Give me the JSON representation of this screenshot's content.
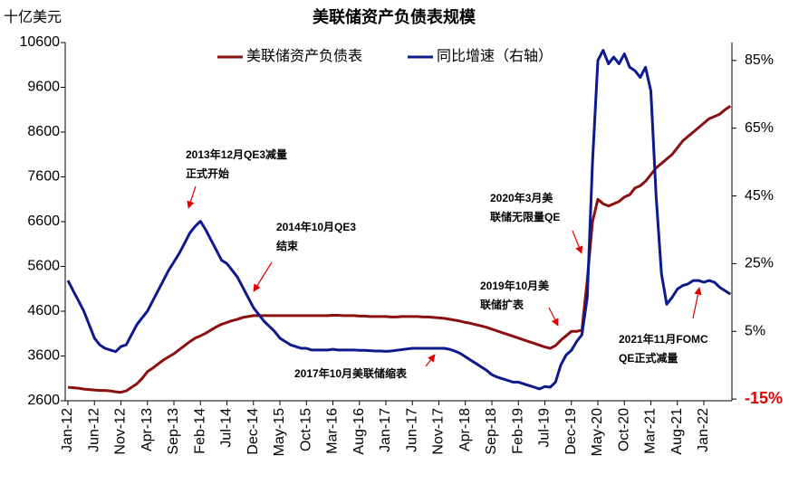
{
  "chart_data": {
    "type": "line",
    "title": "美联储资产负债表规模",
    "y_axis_label": "十亿美元",
    "categories": [
      "Jan-12",
      null,
      null,
      null,
      null,
      "Jun-12",
      null,
      null,
      null,
      null,
      "Nov-12",
      null,
      null,
      null,
      null,
      "Apr-13",
      null,
      null,
      null,
      null,
      "Sep-13",
      null,
      null,
      null,
      null,
      "Feb-14",
      null,
      null,
      null,
      null,
      "Jul-14",
      null,
      null,
      null,
      null,
      "Dec-14",
      null,
      null,
      null,
      null,
      "May-15",
      null,
      null,
      null,
      null,
      "Oct-15",
      null,
      null,
      null,
      null,
      "Mar-16",
      null,
      null,
      null,
      null,
      "Aug-16",
      null,
      null,
      null,
      null,
      "Jan-17",
      null,
      null,
      null,
      null,
      "Jun-17",
      null,
      null,
      null,
      null,
      "Nov-17",
      null,
      null,
      null,
      null,
      "Apr-18",
      null,
      null,
      null,
      null,
      "Sep-18",
      null,
      null,
      null,
      null,
      "Feb-19",
      null,
      null,
      null,
      null,
      "Jul-19",
      null,
      null,
      null,
      null,
      "Dec-19",
      null,
      null,
      null,
      null,
      "May-20",
      null,
      null,
      null,
      null,
      "Oct-20",
      null,
      null,
      null,
      null,
      "Mar-21",
      null,
      null,
      null,
      null,
      "Aug-21",
      null,
      null,
      null,
      null,
      "Jan-22",
      null,
      null,
      null,
      null,
      null
    ],
    "series": [
      {
        "name": "美联储资产负债表",
        "color": "#8b1010",
        "axis": "y",
        "values": [
          2900,
          2890,
          2880,
          2860,
          2850,
          2840,
          2830,
          2830,
          2820,
          2800,
          2790,
          2820,
          2900,
          2980,
          3100,
          3250,
          3330,
          3420,
          3510,
          3580,
          3650,
          3740,
          3830,
          3920,
          4000,
          4050,
          4110,
          4180,
          4250,
          4310,
          4350,
          4390,
          4420,
          4460,
          4480,
          4500,
          4500,
          4500,
          4500,
          4500,
          4500,
          4500,
          4500,
          4500,
          4500,
          4500,
          4500,
          4500,
          4500,
          4500,
          4510,
          4510,
          4500,
          4500,
          4500,
          4490,
          4490,
          4480,
          4480,
          4480,
          4480,
          4470,
          4470,
          4480,
          4480,
          4480,
          4480,
          4470,
          4470,
          4460,
          4450,
          4440,
          4420,
          4400,
          4380,
          4350,
          4330,
          4300,
          4270,
          4240,
          4200,
          4160,
          4120,
          4080,
          4040,
          4000,
          3960,
          3920,
          3880,
          3840,
          3800,
          3770,
          3830,
          3950,
          4050,
          4150,
          4150,
          4180,
          5300,
          6600,
          7100,
          7000,
          6950,
          7000,
          7050,
          7150,
          7200,
          7350,
          7400,
          7500,
          7650,
          7800,
          7900,
          8000,
          8100,
          8250,
          8400,
          8500,
          8600,
          8700,
          8800,
          8900,
          8950,
          9000,
          9100,
          9180
        ]
      },
      {
        "name": "同比增速（右轴）",
        "color": "#0c1a8c",
        "axis": "y2",
        "values": [
          20,
          17,
          14,
          11,
          7,
          3,
          1,
          0,
          -0.5,
          -1,
          0.5,
          1,
          4,
          7,
          9,
          11,
          14,
          17,
          20,
          23,
          25.5,
          28,
          31,
          34,
          36,
          37.5,
          35,
          32,
          29,
          26,
          25,
          23,
          21,
          18,
          15,
          12,
          10,
          8,
          6.5,
          5,
          3,
          2,
          1,
          0.5,
          0,
          0,
          -0.5,
          -0.5,
          -0.5,
          -0.5,
          -0.3,
          -0.5,
          -0.5,
          -0.5,
          -0.5,
          -0.6,
          -0.6,
          -0.7,
          -0.8,
          -0.8,
          -0.9,
          -0.8,
          -0.6,
          -0.4,
          -0.2,
          0,
          0,
          0,
          0,
          0,
          0,
          0,
          -0.3,
          -0.8,
          -1.5,
          -2.5,
          -3.5,
          -4.5,
          -5.5,
          -6.5,
          -7.8,
          -8.5,
          -9,
          -9.5,
          -10,
          -10,
          -10.5,
          -11,
          -11.5,
          -12,
          -11.3,
          -11.5,
          -10,
          -5,
          -2,
          -0.6,
          2,
          4,
          15,
          55,
          85,
          88,
          84,
          86,
          84,
          87,
          83,
          82,
          80,
          83,
          76,
          45,
          22,
          13,
          15,
          17.5,
          18.5,
          19,
          20,
          20,
          19.5,
          20,
          19.5,
          18,
          17,
          16
        ]
      }
    ],
    "ylim": [
      2600,
      10600
    ],
    "yticks": [
      2600,
      3600,
      4600,
      5600,
      6600,
      7600,
      8600,
      9600,
      10600
    ],
    "y2lim": [
      -15.5,
      90.3
    ],
    "y2ticks": [
      {
        "value": -15,
        "label": "-15%"
      },
      {
        "value": 5,
        "label": "5%"
      },
      {
        "value": 25,
        "label": "25%"
      },
      {
        "value": 45,
        "label": "45%"
      },
      {
        "value": 65,
        "label": "65%"
      },
      {
        "value": 85,
        "label": "85%"
      }
    ],
    "grid": false,
    "legend": "top",
    "annotations": [
      {
        "lines": [
          "2013年12月QE3减量",
          "正式开始"
        ]
      },
      {
        "lines": [
          "2014年10月QE3",
          "结束"
        ]
      },
      {
        "lines": [
          "2017年10月美联储缩表"
        ]
      },
      {
        "lines": [
          "2019年10月美",
          "联储扩表"
        ]
      },
      {
        "lines": [
          "2020年3月美",
          "联储无限量QE"
        ]
      },
      {
        "lines": [
          "2021年11月FOMC",
          "QE正式减量"
        ]
      }
    ]
  }
}
